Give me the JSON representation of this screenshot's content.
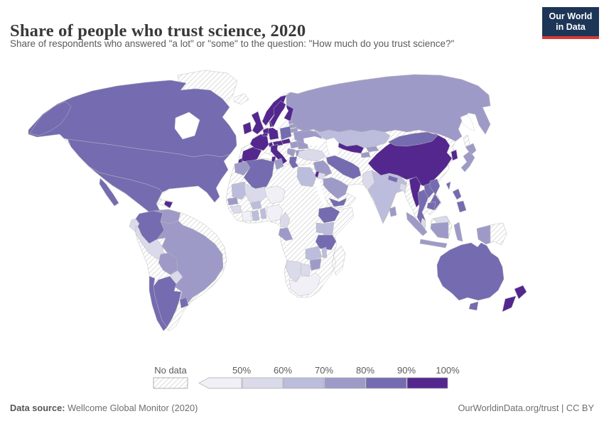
{
  "header": {
    "title": "Share of people who trust science, 2020",
    "subtitle": "Share of respondents who answered \"a lot\" or \"some\" to the question: \"How much do you trust science?\"",
    "logo": {
      "line1": "Our World",
      "line2": "in Data",
      "bg_color": "#1d3556",
      "accent_color": "#d73a32"
    }
  },
  "legend": {
    "no_data_label": "No data",
    "tick_labels": [
      "50%",
      "60%",
      "70%",
      "80%",
      "90%",
      "100%"
    ],
    "hatch_color": "#cccccc",
    "border_color": "#a6a6a6"
  },
  "footer": {
    "source_label": "Data source:",
    "source_value": " Wellcome Global Monitor (2020)",
    "link": "OurWorldinData.org/trust | CC BY"
  },
  "chart_data": {
    "type": "choropleth",
    "title": "Share of people who trust science, 2020",
    "unit": "% of respondents answering 'a lot' or 'some'",
    "legend_position": "bottom",
    "bins": [
      {
        "key": "lt50",
        "label": "<50%",
        "range": [
          0,
          50
        ],
        "color": "#f2f0f7"
      },
      {
        "key": "50-60",
        "label": "50-60%",
        "range": [
          50,
          60
        ],
        "color": "#dadaeb"
      },
      {
        "key": "60-70",
        "label": "60-70%",
        "range": [
          60,
          70
        ],
        "color": "#bcbddc"
      },
      {
        "key": "70-80",
        "label": "70-80%",
        "range": [
          70,
          80
        ],
        "color": "#9e9ac8"
      },
      {
        "key": "80-90",
        "label": "80-90%",
        "range": [
          80,
          90
        ],
        "color": "#756bb1"
      },
      {
        "key": "90-100",
        "label": "90-100%",
        "range": [
          90,
          100
        ],
        "color": "#54278f"
      },
      {
        "key": "no-data",
        "label": "No data",
        "color": "hatch"
      }
    ],
    "countries": {
      "Canada": "80-90",
      "United States": "80-90",
      "Mexico": "80-90",
      "Guatemala": "lt50",
      "Honduras": "lt50",
      "Nicaragua": "90-100",
      "Costa Rica": "80-90",
      "Panama": "70-80",
      "Dominican Republic": "90-100",
      "Cuba": "no-data",
      "Haiti": "no-data",
      "Greenland": "no-data",
      "Colombia": "80-90",
      "Venezuela": "70-80",
      "Guyana": "no-data",
      "Suriname": "no-data",
      "Ecuador": "50-60",
      "Peru": "50-60",
      "Brazil": "70-80",
      "Bolivia": "70-80",
      "Paraguay": "50-60",
      "Uruguay": "80-90",
      "Argentina": "80-90",
      "Chile": "80-90",
      "Iceland": "no-data",
      "Ireland": "90-100",
      "United Kingdom": "90-100",
      "Portugal": "90-100",
      "Spain": "90-100",
      "France": "90-100",
      "Netherlands": "90-100",
      "Belgium": "90-100",
      "Germany": "90-100",
      "Denmark": "90-100",
      "Norway": "90-100",
      "Sweden": "90-100",
      "Finland": "90-100",
      "Switzerland": "90-100",
      "Austria": "90-100",
      "Italy": "90-100",
      "Czechia": "90-100",
      "Poland": "80-90",
      "Estonia": "70-80",
      "Latvia": "70-80",
      "Lithuania": "70-80",
      "Belarus": "no-data",
      "Ukraine": "70-80",
      "Hungary": "70-80",
      "Romania": "70-80",
      "Serbia": "70-80",
      "Bulgaria": "70-80",
      "Greece": "80-90",
      "Russia": "70-80",
      "Kazakhstan": "60-70",
      "Uzbekistan": "90-100",
      "Turkmenistan": "no-data",
      "Kyrgyzstan": "70-80",
      "Tajikistan": "70-80",
      "Turkey": "50-60",
      "Syria": "no-data",
      "Iraq": "70-80",
      "Iran": "80-90",
      "Israel": "90-100",
      "Jordan": "50-60",
      "Saudi Arabia": "70-80",
      "Yemen": "80-90",
      "Oman": "no-data",
      "Afghanistan": "no-data",
      "Pakistan": "50-60",
      "India": "60-70",
      "Nepal": "80-90",
      "Bangladesh": "50-60",
      "Sri Lanka": "70-80",
      "China": "90-100",
      "Mongolia": "80-90",
      "North Korea": "no-data",
      "South Korea": "90-100",
      "Japan": "70-80",
      "Taiwan": "80-90",
      "Myanmar": "90-100",
      "Thailand": "80-90",
      "Laos": "80-90",
      "Vietnam": "80-90",
      "Cambodia": "80-90",
      "Malaysia": "50-60",
      "Philippines": "80-90",
      "Indonesia": "70-80",
      "Papua New Guinea": "no-data",
      "Australia": "80-90",
      "New Zealand": "90-100",
      "Morocco": "70-80",
      "Western Sahara": "no-data",
      "Algeria": "80-90",
      "Tunisia": "70-80",
      "Libya": "no-data",
      "Egypt": "60-70",
      "Mauritania": "60-70",
      "Mali": "50-60",
      "Niger": "lt50",
      "Chad": "no-data",
      "Sudan": "no-data",
      "South Sudan": "no-data",
      "Senegal": "70-80",
      "Guinea": "50-60",
      "Ivory Coast": "lt50",
      "Ghana": "60-70",
      "Burkina Faso": "60-70",
      "Benin": "60-70",
      "Nigeria": "lt50",
      "Cameroon": "50-60",
      "Central African Republic": "no-data",
      "Gabon": "70-80",
      "Democratic Republic of Congo": "no-data",
      "Ethiopia": "80-90",
      "Somalia": "no-data",
      "Kenya": "60-70",
      "Uganda": "60-70",
      "Tanzania": "80-90",
      "Angola": "no-data",
      "Zambia": "60-70",
      "Malawi": "60-70",
      "Zimbabwe": "70-80",
      "Mozambique": "no-data",
      "Botswana": "50-60",
      "Namibia": "50-60",
      "South Africa": "lt50",
      "Madagascar": "no-data"
    }
  }
}
